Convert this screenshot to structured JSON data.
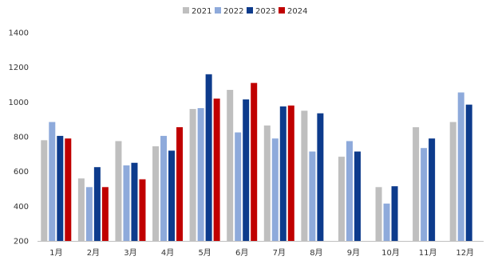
{
  "chart_data": {
    "type": "bar",
    "categories": [
      "1月",
      "2月",
      "3月",
      "4月",
      "5月",
      "6月",
      "7月",
      "8月",
      "9月",
      "10月",
      "11月",
      "12月"
    ],
    "ylim": [
      200,
      1400
    ],
    "yticks": [
      200,
      400,
      600,
      800,
      1000,
      1200,
      1400
    ],
    "grid": false,
    "legend_position": "top-center",
    "series": [
      {
        "name": "2021",
        "color": "#bfbfbf",
        "values": [
          780,
          560,
          775,
          745,
          960,
          1070,
          865,
          950,
          685,
          510,
          855,
          885
        ]
      },
      {
        "name": "2022",
        "color": "#8eaadb",
        "values": [
          885,
          510,
          635,
          805,
          965,
          825,
          790,
          715,
          775,
          415,
          735,
          1055
        ]
      },
      {
        "name": "2023",
        "color": "#0d3b8c",
        "values": [
          805,
          625,
          650,
          720,
          1160,
          1015,
          975,
          935,
          715,
          515,
          790,
          985
        ]
      },
      {
        "name": "2024",
        "color": "#c00000",
        "values": [
          790,
          510,
          555,
          855,
          1020,
          1110,
          980,
          null,
          null,
          null,
          null,
          null
        ]
      }
    ]
  }
}
